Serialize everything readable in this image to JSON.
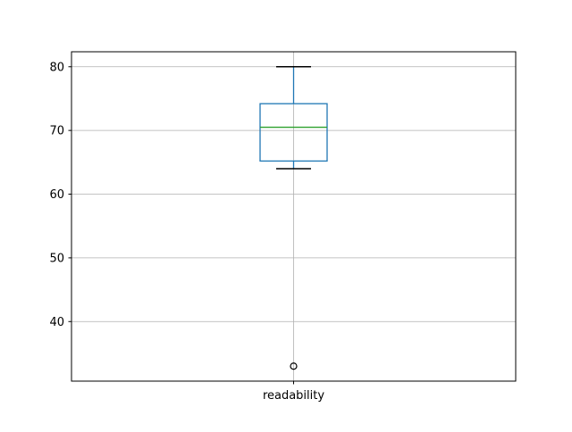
{
  "figure": {
    "background": "#ffffff"
  },
  "chart_data": {
    "type": "boxplot",
    "title": "",
    "xlabel": "",
    "ylabel": "",
    "categories": [
      "readability"
    ],
    "series": [
      {
        "name": "readability",
        "whisker_low": 64,
        "q1": 65.2,
        "median": 70.5,
        "q3": 74.2,
        "whisker_high": 80,
        "outliers": [
          33
        ]
      }
    ],
    "ylim": [
      30.65,
      82.35
    ],
    "yticks": [
      40,
      50,
      60,
      70,
      80
    ],
    "ytick_labels": [
      "40",
      "50",
      "60",
      "70",
      "80"
    ],
    "grid": true,
    "legend_position": "none",
    "colors": {
      "box": "#1f77b4",
      "whisker": "#1f77b4",
      "median": "#2ca02c",
      "cap": "#000000",
      "flier_edge": "#000000",
      "grid": "#b0b0b0",
      "spine": "#000000",
      "text": "#000000"
    }
  }
}
